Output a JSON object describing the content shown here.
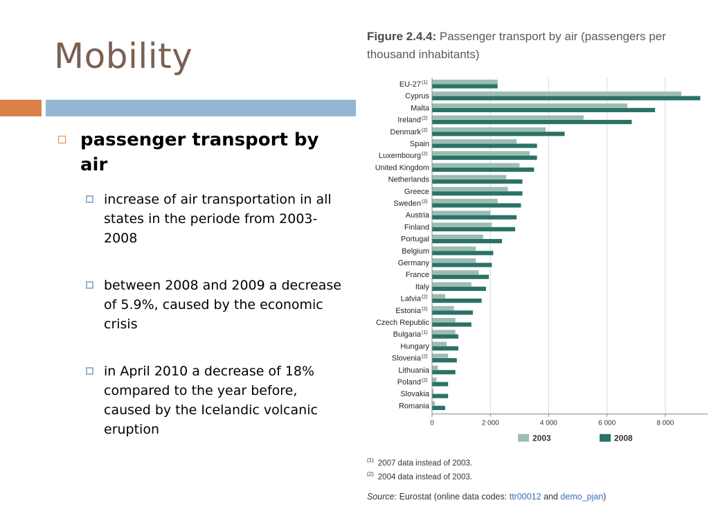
{
  "slide": {
    "title": "Mobility",
    "bullet": "passenger transport by air",
    "subbullets": [
      " increase of air transportation in all states in the periode from 2003- 2008",
      " between 2008 and 2009 a decrease of 5.9%, caused by the economic crisis",
      " in April 2010 a decrease of 18% compared to the year before, caused by the Icelandic volcanic eruption"
    ]
  },
  "figure": {
    "number": "Figure 2.4.4:",
    "title": "Passenger transport by air (passengers per thousand inhabitants)",
    "notes": [
      {
        "mark": "(1)",
        "text": "2007 data instead of 2003."
      },
      {
        "mark": "(2)",
        "text": "2004 data instead of 2003."
      }
    ],
    "source_label": "Source:",
    "source_text": "Eurostat (online data codes:",
    "source_code1": "ttr00012",
    "source_and": "and",
    "source_code2": "demo_pjan",
    "source_close": ")"
  },
  "colors": {
    "title_brown": "#7a6153",
    "accent_orange": "#dd8047",
    "accent_blue": "#94b6d2",
    "series_2003": "#9cbdb1",
    "series_2008": "#2b7266"
  },
  "chart_data": {
    "type": "bar",
    "orientation": "horizontal",
    "title": "Passenger transport by air (passengers per thousand inhabitants)",
    "categories": [
      "EU-27",
      "Cyprus",
      "Malta",
      "Ireland",
      "Denmark",
      "Spain",
      "Luxembourg",
      "United Kingdom",
      "Netherlands",
      "Greece",
      "Sweden",
      "Austria",
      "Finland",
      "Portugal",
      "Belgium",
      "Germany",
      "France",
      "Italy",
      "Latvia",
      "Estonia",
      "Czech Republic",
      "Bulgaria",
      "Hungary",
      "Slovenia",
      "Lithuania",
      "Poland",
      "Slovakia",
      "Romania"
    ],
    "category_notes": [
      "(1)",
      "",
      "",
      "(2)",
      "(2)",
      "",
      "(2)",
      "",
      "",
      "",
      "(2)",
      "",
      "",
      "",
      "",
      "",
      "",
      "",
      "(2)",
      "(2)",
      "",
      "(1)",
      "",
      "(2)",
      "",
      "(2)",
      "",
      ""
    ],
    "series": [
      {
        "name": "2003",
        "values": [
          2250,
          8550,
          6700,
          5200,
          3900,
          2900,
          3350,
          3000,
          2550,
          2600,
          2250,
          2000,
          2050,
          1750,
          1500,
          1500,
          1600,
          1350,
          450,
          750,
          800,
          800,
          500,
          550,
          200,
          150,
          50,
          100
        ]
      },
      {
        "name": "2008",
        "values": [
          2250,
          9200,
          7650,
          6850,
          4550,
          3600,
          3600,
          3500,
          3100,
          3100,
          3050,
          2900,
          2850,
          2400,
          2100,
          2050,
          1950,
          1850,
          1700,
          1400,
          1350,
          900,
          900,
          850,
          800,
          550,
          550,
          450
        ]
      }
    ],
    "xticks": [
      "0",
      "2 000",
      "4 000",
      "6 000",
      "8 000"
    ],
    "xtick_values": [
      0,
      2000,
      4000,
      6000,
      8000
    ],
    "xlim": [
      0,
      9500
    ],
    "legend_position": "bottom",
    "grid": "vertical"
  }
}
